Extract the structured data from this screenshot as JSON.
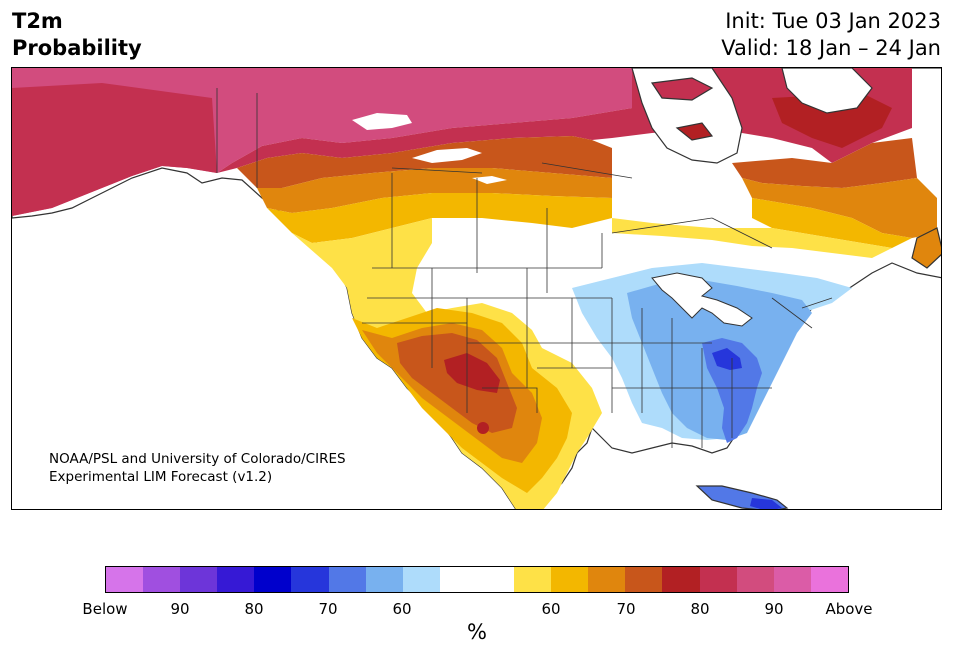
{
  "title": {
    "line1": "T2m",
    "line2": "Probability"
  },
  "dates": {
    "init": "Init: Tue 03 Jan 2023",
    "valid": "Valid: 18 Jan – 24 Jan"
  },
  "credit": {
    "line1": "NOAA/PSL and University of Colorado/CIRES",
    "line2": "Experimental LIM Forecast (v1.2)"
  },
  "colorbar": {
    "unit": "%",
    "colors": [
      "#d674ea",
      "#a04fe0",
      "#6d35d9",
      "#3619d5",
      "#0000cc",
      "#2636db",
      "#5278e7",
      "#78b1ef",
      "#aedcfb",
      "#ffffff",
      "#ffffff",
      "#fee147",
      "#f3b700",
      "#e0860d",
      "#c8561b",
      "#b22023",
      "#c33050",
      "#d24c7e",
      "#db5ca7",
      "#ea72dc"
    ],
    "ticks": [
      "Below",
      "90",
      "80",
      "70",
      "60",
      "60",
      "70",
      "80",
      "90",
      "Above"
    ]
  },
  "palette": {
    "above_90": "#d24c7e",
    "above_80": "#c33050",
    "above_70": "#b22023",
    "above_65": "#c8561b",
    "above_60": "#e0860d",
    "above_55": "#f3b700",
    "above_50": "#fee147",
    "below_50": "#aedcfb",
    "below_55": "#78b1ef",
    "below_60": "#5278e7",
    "below_70": "#2636db"
  }
}
